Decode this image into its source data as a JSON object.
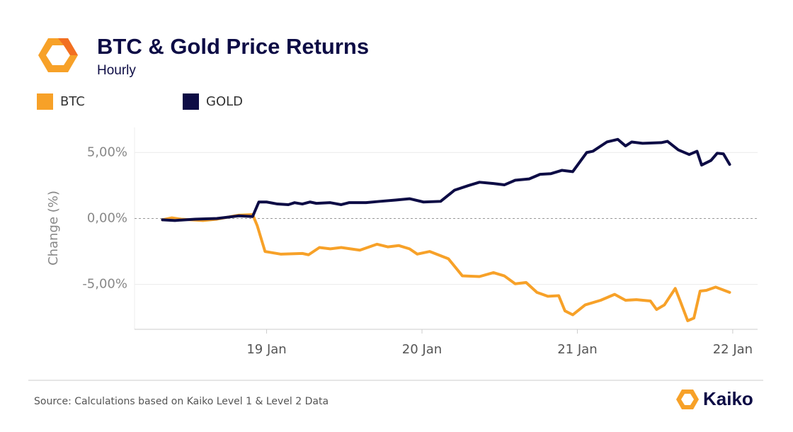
{
  "chart_data": {
    "type": "line",
    "title": "BTC & Gold Price Returns",
    "subtitle": "Hourly",
    "ylabel": "Change (%)",
    "source": "Source: Calculations based on Kaiko Level 1 & Level 2 Data",
    "brand": "Kaiko",
    "xlim": [
      18.15,
      22.16
    ],
    "xticks": [
      {
        "value": 19,
        "label": "19 Jan"
      },
      {
        "value": 20,
        "label": "20 Jan"
      },
      {
        "value": 21,
        "label": "21 Jan"
      },
      {
        "value": 22,
        "label": "22 Jan"
      }
    ],
    "ylim": [
      -8.4,
      6.9
    ],
    "yticks": [
      {
        "value": -5,
        "label": "-5,00%"
      },
      {
        "value": 0,
        "label": "0,00%"
      },
      {
        "value": 5,
        "label": "5,00%"
      }
    ],
    "grid": true,
    "series": [
      {
        "name": "BTC",
        "color": "#f7a128",
        "x": [
          18.33,
          18.39,
          18.45,
          18.59,
          18.68,
          18.82,
          18.91,
          18.94,
          18.99,
          19.09,
          19.23,
          19.27,
          19.34,
          19.41,
          19.48,
          19.6,
          19.71,
          19.78,
          19.85,
          19.92,
          19.97,
          20.05,
          20.17,
          20.26,
          20.37,
          20.46,
          20.53,
          20.6,
          20.67,
          20.74,
          20.81,
          20.88,
          20.92,
          20.97,
          21.05,
          21.15,
          21.24,
          21.31,
          21.38,
          21.47,
          21.51,
          21.56,
          21.63,
          21.66,
          21.71,
          21.75,
          21.79,
          21.83,
          21.89,
          21.98
        ],
        "values": [
          -0.1,
          0.05,
          -0.05,
          -0.15,
          -0.05,
          0.25,
          0.3,
          -0.55,
          -2.5,
          -2.7,
          -2.65,
          -2.75,
          -2.2,
          -2.3,
          -2.2,
          -2.4,
          -1.95,
          -2.15,
          -2.05,
          -2.3,
          -2.7,
          -2.5,
          -3.05,
          -4.35,
          -4.4,
          -4.1,
          -4.35,
          -4.95,
          -4.85,
          -5.6,
          -5.9,
          -5.85,
          -7.0,
          -7.3,
          -6.55,
          -6.2,
          -5.75,
          -6.2,
          -6.15,
          -6.25,
          -6.9,
          -6.55,
          -5.3,
          -6.2,
          -7.75,
          -7.55,
          -5.5,
          -5.45,
          -5.2,
          -5.6
        ]
      },
      {
        "name": "GOLD",
        "color": "#0d0c45",
        "x": [
          18.33,
          18.41,
          18.54,
          18.68,
          18.82,
          18.91,
          18.95,
          19.0,
          19.07,
          19.14,
          19.18,
          19.23,
          19.28,
          19.32,
          19.41,
          19.48,
          19.53,
          19.64,
          19.73,
          19.83,
          19.92,
          20.01,
          20.12,
          20.21,
          20.3,
          20.37,
          20.46,
          20.53,
          20.6,
          20.69,
          20.76,
          20.83,
          20.9,
          20.97,
          21.06,
          21.1,
          21.19,
          21.26,
          21.31,
          21.35,
          21.42,
          21.54,
          21.58,
          21.65,
          21.72,
          21.77,
          21.8,
          21.86,
          21.9,
          21.94,
          21.98
        ],
        "values": [
          -0.1,
          -0.15,
          -0.05,
          0,
          0.2,
          0.15,
          1.25,
          1.25,
          1.1,
          1.05,
          1.2,
          1.1,
          1.25,
          1.15,
          1.2,
          1.05,
          1.2,
          1.2,
          1.3,
          1.4,
          1.5,
          1.25,
          1.3,
          2.15,
          2.5,
          2.75,
          2.65,
          2.55,
          2.9,
          3.0,
          3.35,
          3.4,
          3.65,
          3.55,
          5.0,
          5.1,
          5.8,
          6.0,
          5.5,
          5.8,
          5.7,
          5.75,
          5.85,
          5.2,
          4.85,
          5.1,
          4.05,
          4.4,
          4.95,
          4.9,
          4.1
        ]
      }
    ]
  }
}
